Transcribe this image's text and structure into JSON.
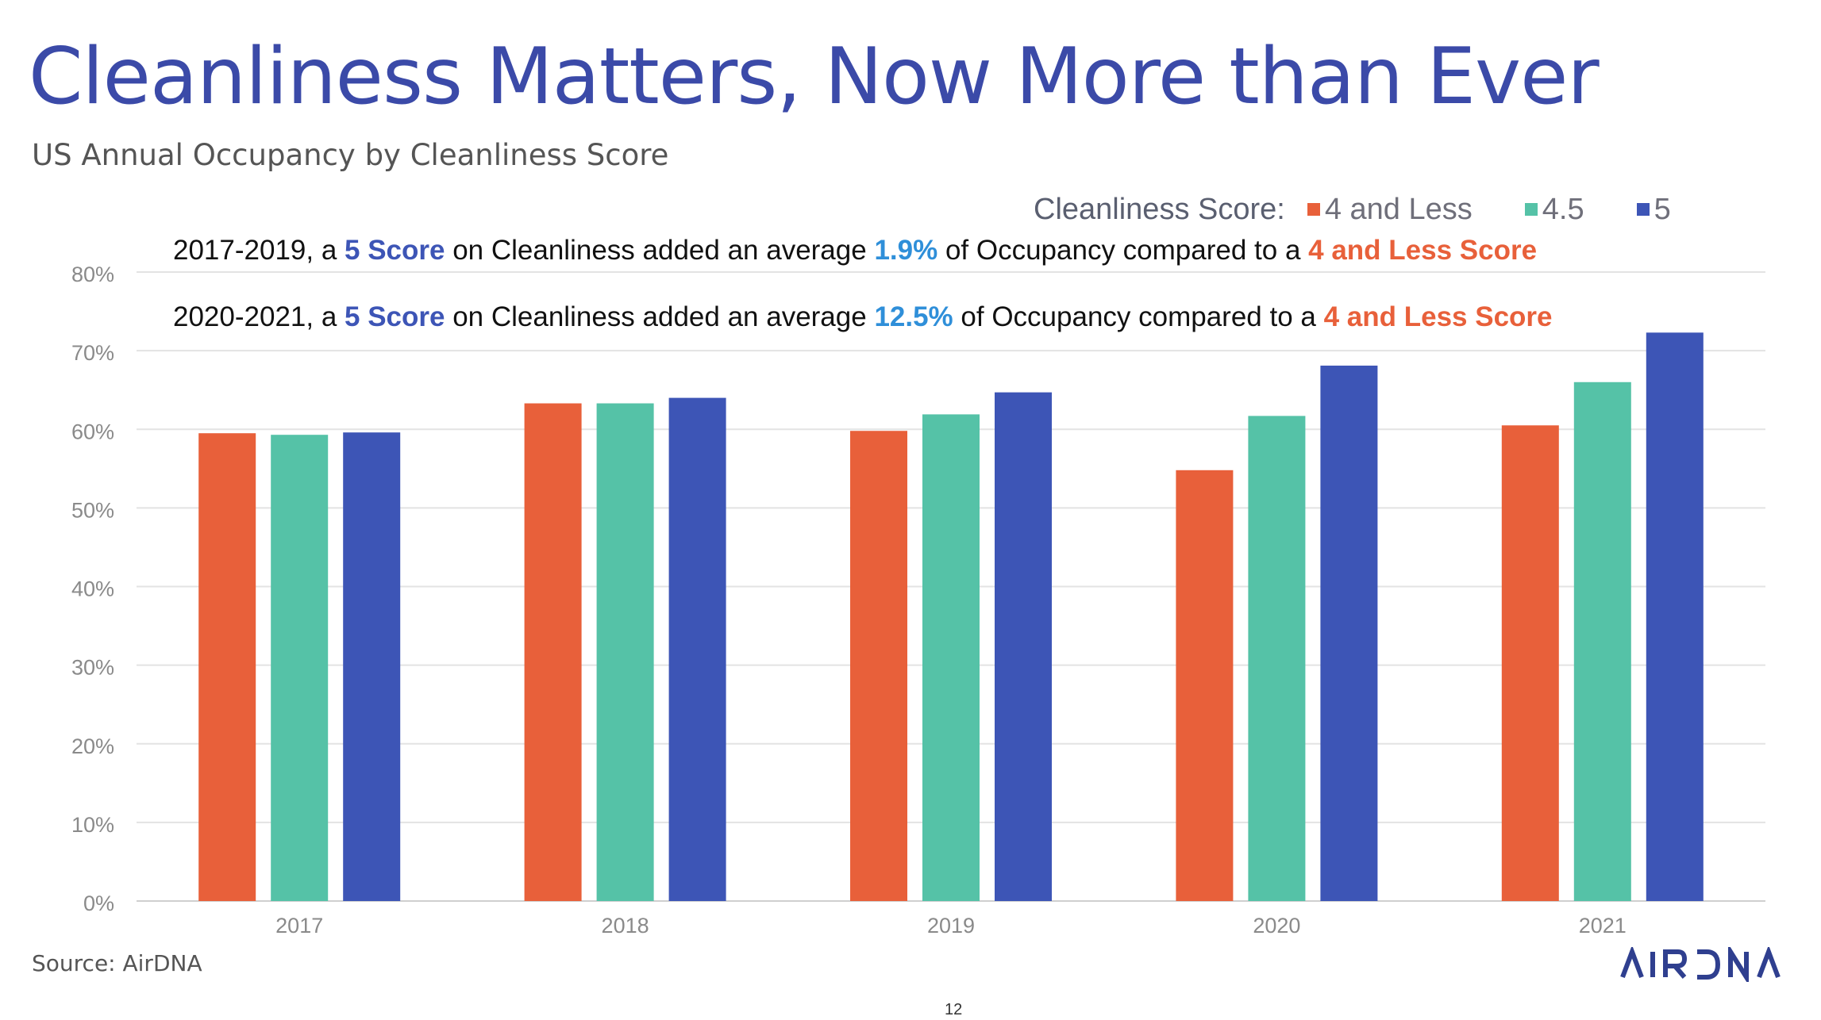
{
  "title": "Cleanliness Matters, Now More than Ever",
  "subtitle": "US Annual Occupancy by Cleanliness Score",
  "legend": {
    "title": "Cleanliness Score:",
    "items": [
      {
        "label": "4 and Less",
        "color": "#e8603a"
      },
      {
        "label": "4.5",
        "color": "#55c2a7"
      },
      {
        "label": "5",
        "color": "#3d55b6"
      }
    ]
  },
  "annotations": [
    {
      "prefix": "2017-2019, a ",
      "score": "5 Score",
      "mid": " on Cleanliness added an average ",
      "value": "1.9%",
      "mid2": " of Occupancy compared to a ",
      "compare": "4 and Less Score"
    },
    {
      "prefix": "2020-2021, a ",
      "score": "5 Score",
      "mid": " on Cleanliness added an average ",
      "value": "12.5%",
      "mid2": " of Occupancy compared to a ",
      "compare": "4 and Less Score"
    }
  ],
  "source": "Source: AirDNA",
  "page_number": "12",
  "logo_text": "AIRDNA",
  "chart_data": {
    "type": "bar",
    "categories": [
      "2017",
      "2018",
      "2019",
      "2020",
      "2021"
    ],
    "series": [
      {
        "name": "4 and Less",
        "color": "#e8603a",
        "values": [
          59.5,
          63.3,
          59.8,
          54.8,
          60.5
        ]
      },
      {
        "name": "4.5",
        "color": "#55c2a7",
        "values": [
          59.3,
          63.3,
          61.9,
          61.7,
          66.0
        ]
      },
      {
        "name": "5",
        "color": "#3d55b6",
        "values": [
          59.6,
          64.0,
          64.7,
          68.1,
          72.3
        ]
      }
    ],
    "ylim": [
      0,
      80
    ],
    "yticks": [
      "0%",
      "10%",
      "20%",
      "30%",
      "40%",
      "50%",
      "60%",
      "70%",
      "80%"
    ],
    "grid": true,
    "legend_position": "top-right"
  }
}
